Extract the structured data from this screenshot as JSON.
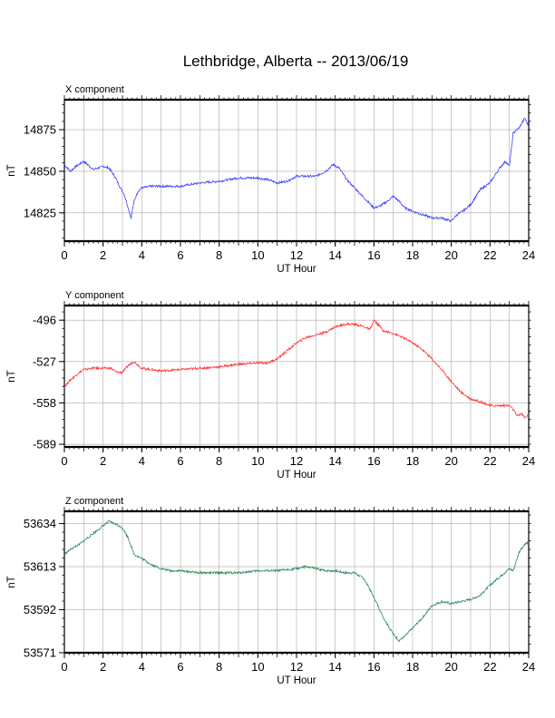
{
  "title": "Lethbridge, Alberta -- 2013/06/19",
  "chart_data": [
    {
      "type": "line",
      "title": "X component",
      "xlabel": "UT Hour",
      "ylabel": "nT",
      "xlim": [
        0,
        24
      ],
      "ylim": [
        14808,
        14893
      ],
      "xticks": [
        0,
        2,
        4,
        6,
        8,
        10,
        12,
        14,
        16,
        18,
        20,
        22,
        24
      ],
      "yticks": [
        14825,
        14850,
        14875
      ],
      "grid": true,
      "color": "#4040ff",
      "series": [
        {
          "x": [
            0,
            0.3,
            0.6,
            1.0,
            1.5,
            2.0,
            2.3,
            2.6,
            2.9,
            3.1,
            3.3,
            3.45,
            3.6,
            3.8,
            4.0,
            4.5,
            5.0,
            6.0,
            7.0,
            8.0,
            9.0,
            10.0,
            10.5,
            11.0,
            11.5,
            12.0,
            12.5,
            13.0,
            13.5,
            13.9,
            14.2,
            14.6,
            15.0,
            15.5,
            16.0,
            16.3,
            16.7,
            17.0,
            17.3,
            17.6,
            18.0,
            18.5,
            19.0,
            19.5,
            20.0,
            20.3,
            20.6,
            21.0,
            21.5,
            22.0,
            22.5,
            22.8,
            23.0,
            23.2,
            23.5,
            23.8,
            24.0
          ],
          "y": [
            14854,
            14850,
            14853,
            14856,
            14851,
            14853,
            14852,
            14847,
            14840,
            14836,
            14828,
            14822,
            14832,
            14838,
            14840,
            14841,
            14841,
            14841,
            14843,
            14844,
            14846,
            14846,
            14845,
            14843,
            14844,
            14847,
            14847,
            14847,
            14850,
            14854,
            14852,
            14845,
            14840,
            14834,
            14828,
            14829,
            14832,
            14835,
            14832,
            14828,
            14826,
            14824,
            14822,
            14822,
            14820,
            14824,
            14826,
            14830,
            14839,
            14843,
            14852,
            14856,
            14853,
            14873,
            14876,
            14882,
            14877
          ]
        }
      ]
    },
    {
      "type": "line",
      "title": "Y component",
      "xlabel": "UT Hour",
      "ylabel": "nT",
      "xlim": [
        0,
        24
      ],
      "ylim": [
        -591,
        -485
      ],
      "xticks": [
        0,
        2,
        4,
        6,
        8,
        10,
        12,
        14,
        16,
        18,
        20,
        22,
        24
      ],
      "yticks": [
        -496,
        -527,
        -558,
        -589
      ],
      "grid": true,
      "color": "#ff3333",
      "series": [
        {
          "x": [
            0,
            0.3,
            0.7,
            1.0,
            1.5,
            2.0,
            2.4,
            2.7,
            3.0,
            3.3,
            3.6,
            4.0,
            5.0,
            6.0,
            7.0,
            8.0,
            9.0,
            10.0,
            10.5,
            11.0,
            11.5,
            12.0,
            12.5,
            13.0,
            13.5,
            14.0,
            14.5,
            15.0,
            15.5,
            15.8,
            16.0,
            16.2,
            16.5,
            17.0,
            17.5,
            18.0,
            18.5,
            19.0,
            19.5,
            20.0,
            20.5,
            21.0,
            21.5,
            22.0,
            22.5,
            23.0,
            23.2,
            23.4,
            23.6,
            23.8,
            24.0
          ],
          "y": [
            -546,
            -541,
            -536,
            -533,
            -532,
            -532,
            -532,
            -535,
            -535,
            -530,
            -527,
            -532,
            -534,
            -533,
            -532,
            -531,
            -529,
            -528,
            -528,
            -525,
            -519,
            -513,
            -509,
            -507,
            -505,
            -501,
            -499,
            -499,
            -501,
            -503,
            -496,
            -499,
            -504,
            -506,
            -509,
            -513,
            -518,
            -525,
            -533,
            -542,
            -550,
            -555,
            -557,
            -560,
            -560,
            -560,
            -563,
            -568,
            -566,
            -569,
            -567
          ]
        }
      ]
    },
    {
      "type": "line",
      "title": "Z component",
      "xlabel": "UT Hour",
      "ylabel": "nT",
      "xlim": [
        0,
        24
      ],
      "ylim": [
        53571,
        53640
      ],
      "xticks": [
        0,
        2,
        4,
        6,
        8,
        10,
        12,
        14,
        16,
        18,
        20,
        22,
        24
      ],
      "yticks": [
        53571,
        53592,
        53613,
        53634
      ],
      "grid": true,
      "color": "#2e8b57",
      "series": [
        {
          "x": [
            0,
            0.4,
            0.8,
            1.2,
            1.6,
            2.0,
            2.3,
            2.6,
            3.0,
            3.3,
            3.6,
            4.0,
            4.5,
            5.0,
            5.5,
            6.0,
            7.0,
            8.0,
            9.0,
            10.0,
            11.0,
            12.0,
            12.5,
            13.0,
            13.5,
            14.0,
            14.5,
            15.0,
            15.5,
            16.0,
            16.5,
            17.0,
            17.3,
            17.6,
            18.0,
            18.5,
            19.0,
            19.5,
            20.0,
            20.5,
            21.0,
            21.5,
            22.0,
            22.5,
            23.0,
            23.2,
            23.5,
            23.8,
            24.0
          ],
          "y": [
            53619,
            53622,
            53624,
            53627,
            53630,
            53633,
            53635,
            53634,
            53632,
            53627,
            53619,
            53617,
            53614,
            53612,
            53611,
            53611,
            53610,
            53610,
            53610,
            53611,
            53611,
            53612,
            53613,
            53612,
            53611,
            53611,
            53610,
            53610,
            53607,
            53598,
            53588,
            53580,
            53577,
            53579,
            53583,
            53588,
            53594,
            53596,
            53595,
            53596,
            53597,
            53599,
            53604,
            53608,
            53612,
            53611,
            53620,
            53624,
            53625
          ]
        }
      ]
    }
  ]
}
